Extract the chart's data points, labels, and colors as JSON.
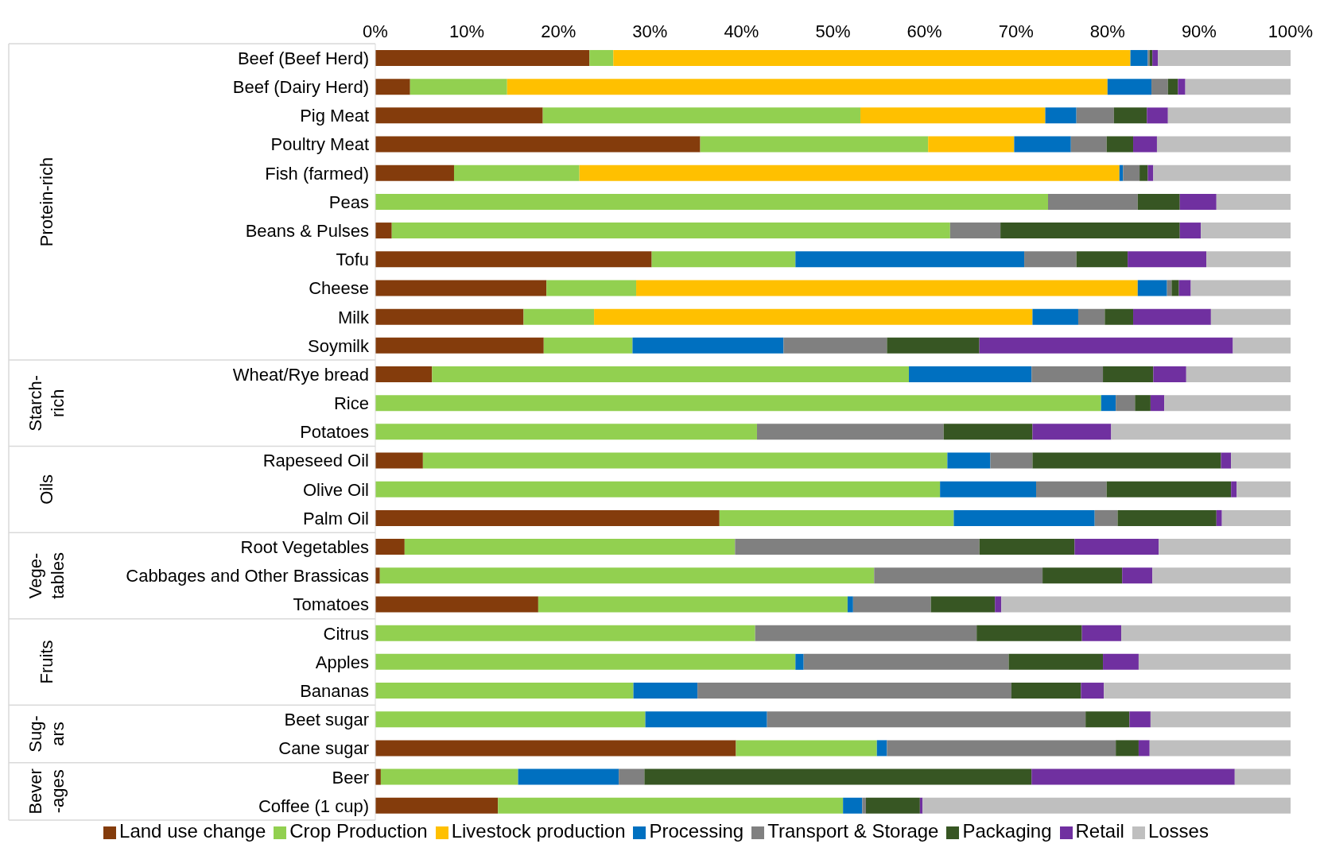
{
  "chart_data": {
    "type": "bar",
    "orientation": "horizontal",
    "stacked": true,
    "legend": "bottom",
    "grid": false,
    "categories": [
      "Beef (Beef Herd)",
      "Beef (Dairy Herd)",
      "Pig Meat",
      "Poultry Meat",
      "Fish (farmed)",
      "Peas",
      "Beans & Pulses",
      "Tofu",
      "Cheese",
      "Milk",
      "Soymilk",
      "Wheat/Rye bread",
      "Rice",
      "Potatoes",
      "Rapeseed Oil",
      "Olive Oil",
      "Palm Oil",
      "Root Vegetables",
      "Cabbages and Other Brassicas",
      "Tomatoes",
      "Citrus",
      "Apples",
      "Bananas",
      "Beet sugar",
      "Cane sugar",
      "Beer",
      "Coffee (1 cup)"
    ],
    "xlim": [
      0,
      100
    ],
    "xticks": [
      {
        "value": 0,
        "label": "0%"
      },
      {
        "value": 10,
        "label": "10%"
      },
      {
        "value": 20,
        "label": "20%"
      },
      {
        "value": 30,
        "label": "30%"
      },
      {
        "value": 40,
        "label": "40%"
      },
      {
        "value": 50,
        "label": "50%"
      },
      {
        "value": 60,
        "label": "60%"
      },
      {
        "value": 70,
        "label": "70%"
      },
      {
        "value": 80,
        "label": "80%"
      },
      {
        "value": 90,
        "label": "90%"
      },
      {
        "value": 100,
        "label": "100%"
      }
    ],
    "series": [
      {
        "name": "Land use change",
        "color": "#843c0c",
        "values": [
          23.4,
          3.8,
          18.3,
          35.5,
          8.6,
          0,
          1.8,
          30.2,
          18.7,
          16.2,
          18.4,
          6.2,
          0,
          0,
          5.2,
          0,
          37.6,
          3.2,
          0.5,
          17.8,
          0,
          0,
          0,
          0,
          39.4,
          0.6,
          13.4
        ]
      },
      {
        "name": "Crop Production",
        "color": "#92d050",
        "values": [
          2.6,
          10.6,
          34.7,
          24.9,
          13.7,
          73.5,
          61.0,
          15.7,
          9.8,
          7.7,
          9.7,
          52.1,
          79.3,
          41.7,
          57.3,
          61.7,
          25.6,
          36.1,
          54.0,
          33.8,
          41.5,
          45.9,
          28.2,
          29.5,
          15.4,
          15.0,
          37.7
        ]
      },
      {
        "name": "Livestock production",
        "color": "#ffc000",
        "values": [
          56.5,
          65.6,
          20.2,
          9.4,
          59.0,
          0,
          0,
          0,
          54.8,
          47.9,
          0,
          0,
          0,
          0,
          0,
          0,
          0,
          0,
          0,
          0,
          0,
          0,
          0,
          0,
          0,
          0,
          0
        ]
      },
      {
        "name": "Processing",
        "color": "#0070c0",
        "values": [
          1.9,
          4.8,
          3.4,
          6.2,
          0.4,
          0,
          0,
          25.0,
          3.2,
          5.0,
          16.5,
          13.4,
          1.6,
          0,
          4.7,
          10.5,
          15.4,
          0,
          0,
          0.6,
          0,
          0.9,
          7.0,
          13.3,
          1.1,
          11.0,
          2.1
        ]
      },
      {
        "name": "Transport & Storage",
        "color": "#808080",
        "values": [
          0.2,
          1.8,
          4.1,
          3.9,
          1.8,
          9.8,
          5.5,
          5.7,
          0.5,
          2.9,
          11.3,
          7.8,
          2.1,
          20.4,
          4.6,
          7.7,
          2.5,
          26.7,
          18.4,
          8.5,
          24.2,
          22.4,
          34.3,
          34.8,
          25.0,
          2.8,
          0.4
        ]
      },
      {
        "name": "Packaging",
        "color": "#375623",
        "values": [
          0.3,
          1.1,
          3.6,
          2.9,
          0.9,
          4.6,
          19.6,
          5.6,
          0.8,
          3.1,
          10.1,
          5.5,
          1.7,
          9.7,
          20.6,
          13.6,
          10.8,
          10.4,
          8.7,
          7.0,
          11.5,
          10.3,
          7.6,
          4.8,
          2.5,
          42.3,
          5.9
        ]
      },
      {
        "name": "Retail",
        "color": "#7030a0",
        "values": [
          0.6,
          0.8,
          2.3,
          2.6,
          0.6,
          4.0,
          2.3,
          8.6,
          1.3,
          8.5,
          27.7,
          3.6,
          1.5,
          8.6,
          1.1,
          0.6,
          0.6,
          9.2,
          3.3,
          0.7,
          4.3,
          3.9,
          2.5,
          2.3,
          1.2,
          22.2,
          0.3
        ]
      },
      {
        "name": "Losses",
        "color": "#bfbfbf",
        "values": [
          14.5,
          11.5,
          13.4,
          14.6,
          15.0,
          8.1,
          9.8,
          9.2,
          10.9,
          8.7,
          6.3,
          11.4,
          13.8,
          19.6,
          6.5,
          5.9,
          7.5,
          14.4,
          15.1,
          31.6,
          18.5,
          16.6,
          20.4,
          15.3,
          15.4,
          6.1,
          40.2
        ]
      }
    ],
    "annotations": [
      "Protein-rich",
      "Starch-\nrich",
      "Oils",
      "Vege-\ntables",
      "Fruits",
      "Sug-\nars",
      "Bever\n-ages"
    ]
  }
}
